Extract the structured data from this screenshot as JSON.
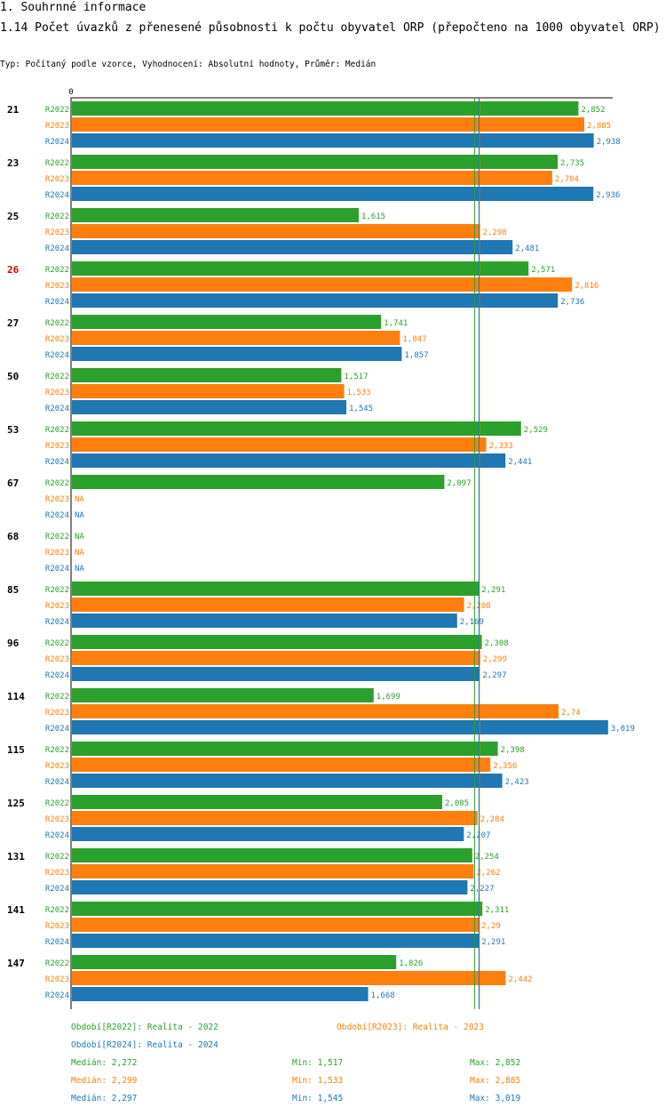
{
  "header": {
    "section": "1. Souhrnné informace",
    "title": "1.14 Počet úvazků z přenesené působnosti k počtu obyvatel ORP (přepočteno na 1000 obyvatel ORP)",
    "subtitle": "Typ: Počítaný podle vzorce, Vyhodnocení: Absolutní hodnoty, Průměr: Medián"
  },
  "colors": {
    "R2022": "#2ca02c",
    "R2023": "#ff7f0e",
    "R2024": "#1f77b4",
    "highlight": "#dd0000"
  },
  "chart_data": {
    "type": "bar",
    "orientation": "horizontal",
    "axis_zero_label": "0",
    "xlim": [
      0,
      3.019
    ],
    "highlight_category": "26",
    "categories": [
      "21",
      "23",
      "25",
      "26",
      "27",
      "50",
      "53",
      "67",
      "68",
      "85",
      "96",
      "114",
      "115",
      "125",
      "131",
      "141",
      "147"
    ],
    "series": [
      {
        "name": "R2022",
        "values": [
          2.852,
          2.735,
          1.615,
          2.571,
          1.741,
          1.517,
          2.529,
          2.097,
          null,
          2.291,
          2.308,
          1.699,
          2.398,
          2.085,
          2.254,
          2.311,
          1.826
        ],
        "labels": [
          "2,852",
          "2,735",
          "1,615",
          "2,571",
          "1,741",
          "1,517",
          "2,529",
          "2,097",
          "NA",
          "2,291",
          "2,308",
          "1,699",
          "2,398",
          "2,085",
          "2,254",
          "2,311",
          "1,826"
        ]
      },
      {
        "name": "R2023",
        "values": [
          2.885,
          2.704,
          2.298,
          2.816,
          1.847,
          1.533,
          2.333,
          null,
          null,
          2.208,
          2.299,
          2.74,
          2.356,
          2.284,
          2.262,
          2.29,
          2.442
        ],
        "labels": [
          "2,885",
          "2,704",
          "2,298",
          "2,816",
          "1,847",
          "1,533",
          "2,333",
          "NA",
          "NA",
          "2,208",
          "2,299",
          "2,74",
          "2,356",
          "2,284",
          "2,262",
          "2,29",
          "2,442"
        ]
      },
      {
        "name": "R2024",
        "values": [
          2.938,
          2.936,
          2.481,
          2.736,
          1.857,
          1.545,
          2.441,
          null,
          null,
          2.169,
          2.297,
          3.019,
          2.423,
          2.207,
          2.227,
          2.291,
          1.668
        ],
        "labels": [
          "2,938",
          "2,936",
          "2,481",
          "2,736",
          "1,857",
          "1,545",
          "2,441",
          "NA",
          "NA",
          "2,169",
          "2,297",
          "3,019",
          "2,423",
          "2,207",
          "2,227",
          "2,291",
          "1,668"
        ]
      }
    ],
    "median_lines": [
      {
        "series": "R2022",
        "value": 2.272
      },
      {
        "series": "R2023",
        "value": 2.299
      },
      {
        "series": "R2024",
        "value": 2.297
      }
    ]
  },
  "legend": {
    "periods": [
      "Období[R2022]: Realita - 2022",
      "Období[R2023]: Realita - 2023",
      "Období[R2024]: Realita - 2024"
    ],
    "stats": [
      {
        "median": "Medián: 2,272",
        "min": "Min: 1,517",
        "max": "Max: 2,852"
      },
      {
        "median": "Medián: 2,299",
        "min": "Min: 1,533",
        "max": "Max: 2,885"
      },
      {
        "median": "Medián: 2,297",
        "min": "Min: 1,545",
        "max": "Max: 3,019"
      }
    ]
  }
}
